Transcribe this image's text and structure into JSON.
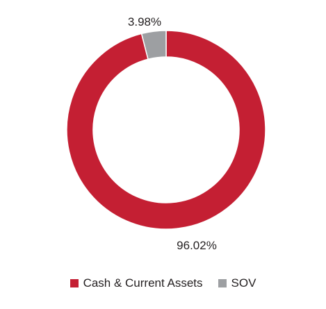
{
  "chart_data": {
    "type": "pie",
    "donut": true,
    "categories": [
      "Cash & Current Assets",
      "SOV"
    ],
    "values": [
      96.02,
      3.98
    ],
    "value_labels": [
      "96.02%",
      "3.98%"
    ],
    "colors": [
      "#c41f33",
      "#9d9fa2"
    ],
    "legend": "bottom",
    "title": ""
  }
}
